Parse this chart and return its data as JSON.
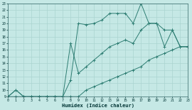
{
  "xlabel": "Humidex (Indice chaleur)",
  "bg_color": "#c5e8e5",
  "grid_color": "#aad4d0",
  "line_color": "#2d7d72",
  "xlim": [
    0,
    23
  ],
  "ylim": [
    9,
    23
  ],
  "xticks": [
    0,
    1,
    2,
    3,
    4,
    5,
    6,
    7,
    8,
    9,
    10,
    11,
    12,
    13,
    14,
    15,
    16,
    17,
    18,
    19,
    20,
    21,
    22,
    23
  ],
  "yticks": [
    9,
    10,
    11,
    12,
    13,
    14,
    15,
    16,
    17,
    18,
    19,
    20,
    21,
    22,
    23
  ],
  "line1_x": [
    0,
    1,
    2,
    3,
    4,
    5,
    6,
    7,
    8,
    9,
    10,
    11,
    12,
    13,
    14,
    15,
    16,
    17,
    18,
    19,
    20,
    21,
    22,
    23
  ],
  "line1_y": [
    9,
    9,
    9,
    9,
    9,
    9,
    9,
    9,
    9,
    9,
    10,
    10.5,
    11,
    11.5,
    12,
    12.5,
    13,
    13.5,
    14.5,
    15,
    15.5,
    16,
    16.5,
    16.5
  ],
  "line2_x": [
    0,
    1,
    2,
    3,
    4,
    5,
    6,
    7,
    8,
    9,
    10,
    11,
    12,
    13,
    14,
    15,
    16,
    17,
    18,
    19,
    20,
    21,
    22,
    23
  ],
  "line2_y": [
    9,
    10,
    9,
    9,
    9,
    9,
    9,
    9,
    11.5,
    20,
    19.8,
    20,
    20.5,
    21.5,
    21.5,
    21.5,
    20,
    23,
    20,
    20,
    16.5,
    19,
    16.5,
    16.5
  ],
  "line3_x": [
    0,
    1,
    2,
    3,
    4,
    5,
    6,
    7,
    8,
    9,
    10,
    11,
    12,
    13,
    14,
    15,
    16,
    17,
    18,
    19,
    20,
    21,
    22,
    23
  ],
  "line3_y": [
    9,
    10,
    9,
    9,
    9,
    9,
    9,
    9,
    17,
    12.5,
    13.5,
    14.5,
    15.5,
    16.5,
    17,
    17.5,
    17,
    19,
    20,
    20,
    19,
    19,
    16.5,
    16.5
  ]
}
